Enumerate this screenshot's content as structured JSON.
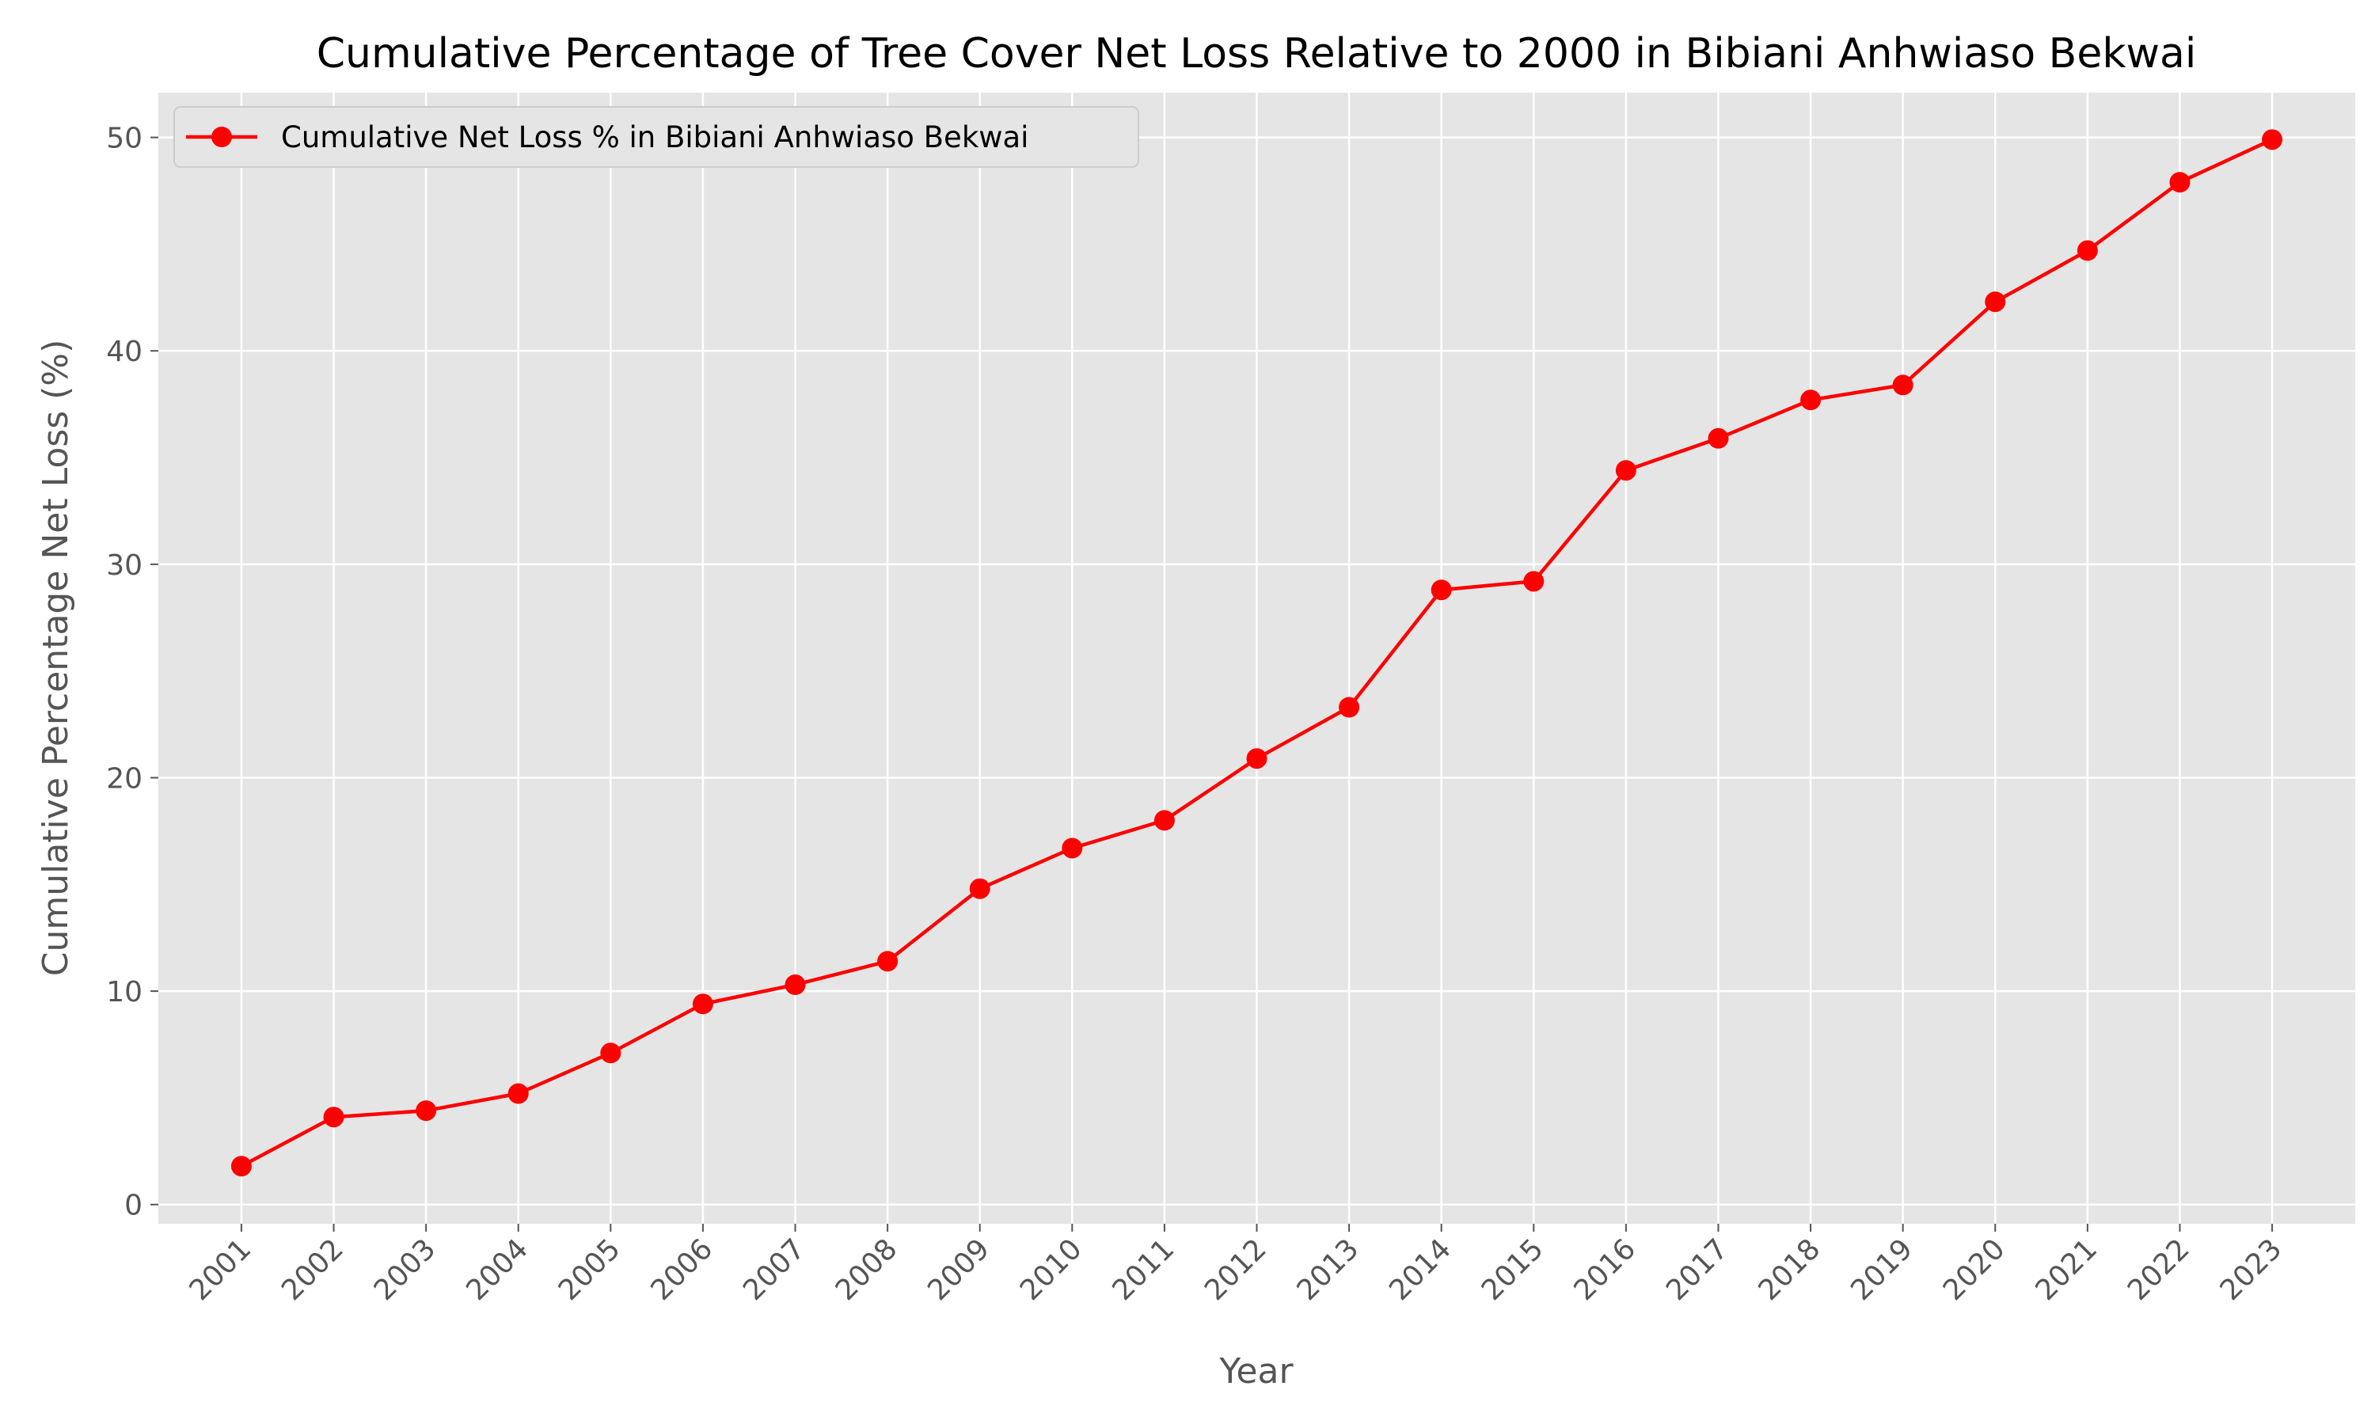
{
  "chart_data": {
    "type": "line",
    "title": "Cumulative Percentage of Tree Cover Net Loss Relative to 2000 in Bibiani Anhwiaso Bekwai",
    "xlabel": "Year",
    "ylabel": "Cumulative Percentage Net Loss (%)",
    "x": [
      "2001",
      "2002",
      "2003",
      "2004",
      "2005",
      "2006",
      "2007",
      "2008",
      "2009",
      "2010",
      "2011",
      "2012",
      "2013",
      "2014",
      "2015",
      "2016",
      "2017",
      "2018",
      "2019",
      "2020",
      "2021",
      "2022",
      "2023"
    ],
    "series": [
      {
        "name": "Cumulative Net Loss % in Bibiani Anhwiaso Bekwai",
        "values": [
          1.8,
          4.1,
          4.4,
          5.2,
          7.1,
          9.4,
          10.3,
          11.4,
          14.8,
          16.7,
          18.0,
          20.9,
          23.3,
          28.8,
          29.2,
          34.4,
          35.9,
          37.7,
          38.4,
          42.3,
          44.7,
          47.9,
          49.9
        ],
        "color": "#ff0000",
        "marker": "circle"
      }
    ],
    "yticks": [
      0,
      10,
      20,
      30,
      40,
      50
    ],
    "ylim": [
      -0.9,
      52.1
    ],
    "xlim": [
      2000.1,
      2023.9
    ],
    "grid": true,
    "legend_position": "top-left",
    "background_color": "#e5e5e5",
    "grid_color": "#ffffff",
    "text_color": "#555555",
    "title_color": "#000000",
    "x_tick_rotation": 45
  }
}
